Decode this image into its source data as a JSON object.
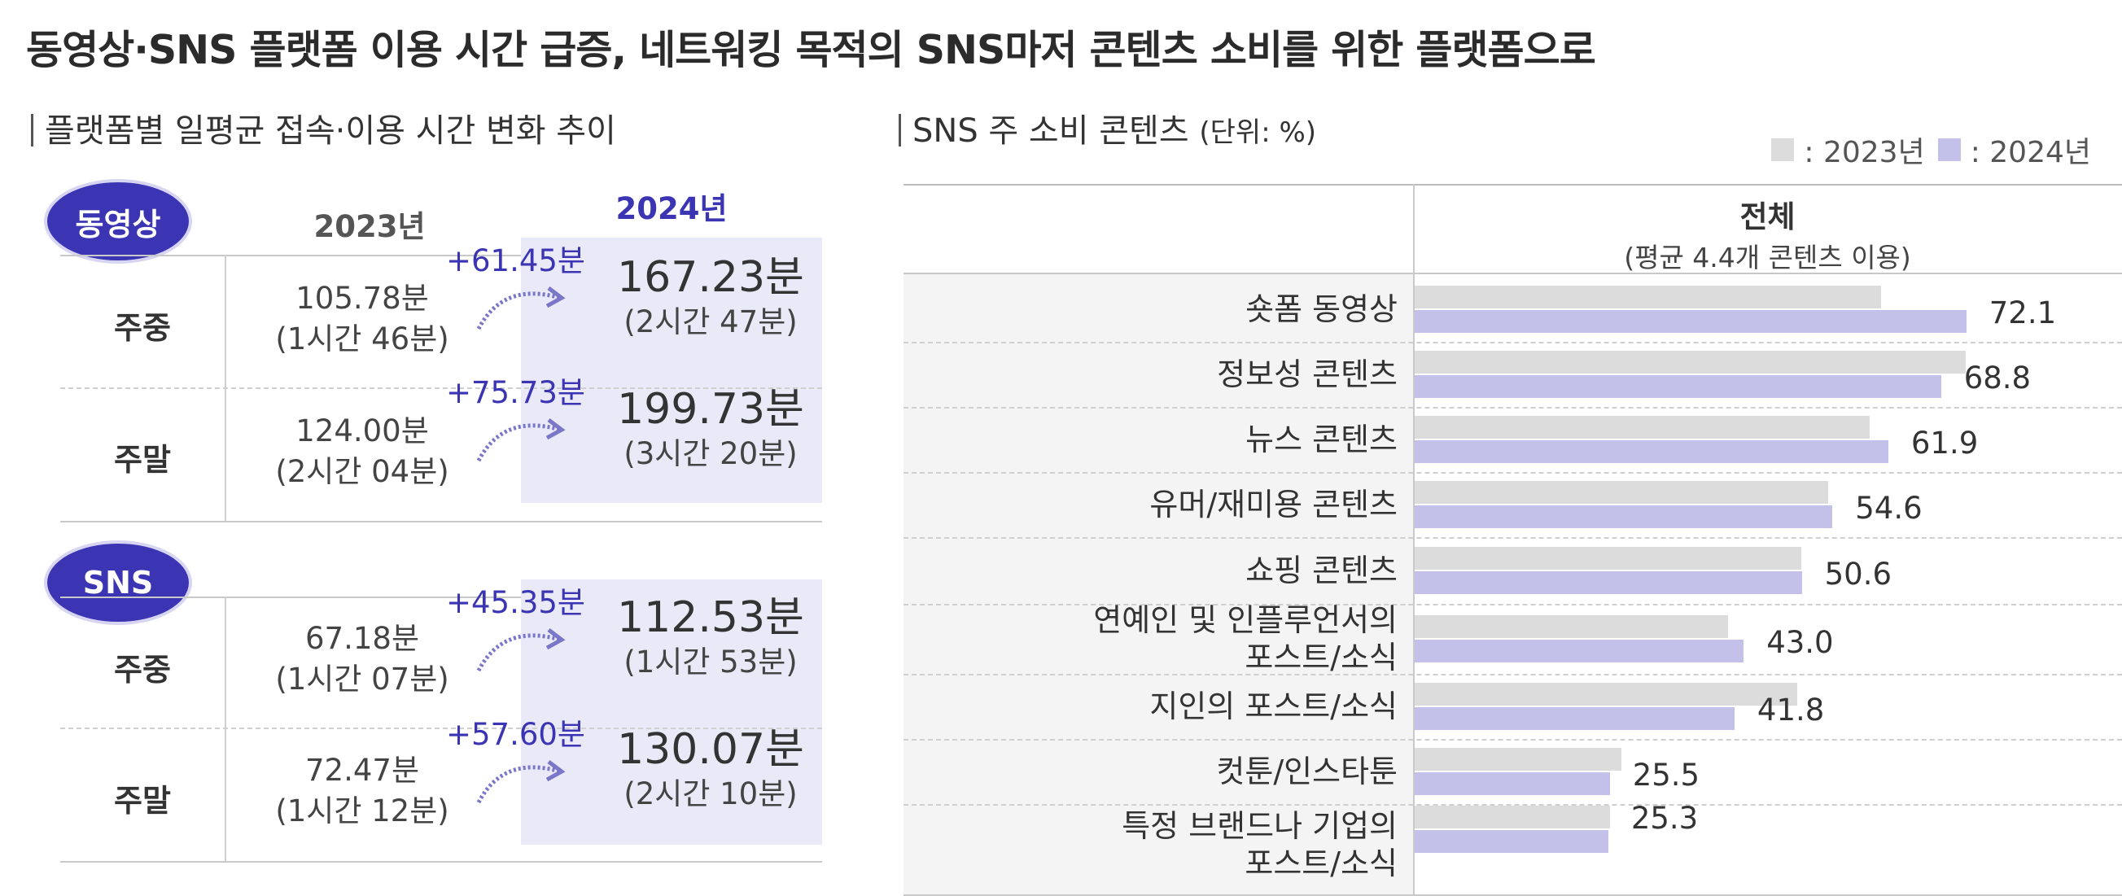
{
  "main_title": "동영상·SNS 플랫폼 이용 시간 급증, 네트워킹 목적의 SNS마저 콘텐츠 소비를 위한 플랫폼으로",
  "left": {
    "title": "플랫폼별 일평균 접속·이용 시간 변화 추이",
    "year_2023": "2023년",
    "year_2024": "2024년",
    "groups": [
      {
        "name": "동영상",
        "rows": [
          {
            "label": "주중",
            "v2023": "105.78분",
            "v2023_sub": "(1시간 46분)",
            "diff": "+61.45분",
            "v2024": "167.23분",
            "v2024_sub": "(2시간 47분)"
          },
          {
            "label": "주말",
            "v2023": "124.00분",
            "v2023_sub": "(2시간 04분)",
            "diff": "+75.73분",
            "v2024": "199.73분",
            "v2024_sub": "(3시간 20분)"
          }
        ]
      },
      {
        "name": "SNS",
        "rows": [
          {
            "label": "주중",
            "v2023": "67.18분",
            "v2023_sub": "(1시간 07분)",
            "diff": "+45.35분",
            "v2024": "112.53분",
            "v2024_sub": "(1시간 53분)"
          },
          {
            "label": "주말",
            "v2023": "72.47분",
            "v2023_sub": "(1시간 12분)",
            "diff": "+57.60분",
            "v2024": "130.07분",
            "v2024_sub": "(2시간 10분)"
          }
        ]
      }
    ]
  },
  "right": {
    "title": "SNS 주 소비 콘텐츠",
    "unit": "(단위: %)",
    "legend_2023": ": 2023년",
    "legend_2024": ": 2024년",
    "header": "전체",
    "subheader": "(평균 4.4개 콘텐츠 이용)"
  },
  "colors": {
    "accent": "#3b35b4",
    "bar_2023": "#dcdcdc",
    "bar_2024": "#c3c1ea",
    "shade": "#e9e9f7"
  },
  "chart_data": {
    "type": "bar",
    "orientation": "horizontal",
    "categories": [
      "숏폼 동영상",
      "정보성 콘텐츠",
      "뉴스 콘텐츠",
      "유머/재미용 콘텐츠",
      "쇼핑 콘텐츠",
      "연예인 및 인플루언서의\n포스트/소식",
      "지인의 포스트/소식",
      "컷툰/인스타툰",
      "특정 브랜드나 기업의\n포스트/소식"
    ],
    "series": [
      {
        "name": "2023년",
        "values": [
          61.0,
          72.0,
          59.5,
          54.0,
          50.5,
          41.0,
          50.0,
          27.0,
          25.5
        ]
      },
      {
        "name": "2024년",
        "values": [
          72.1,
          68.8,
          61.9,
          54.6,
          50.6,
          43.0,
          41.8,
          25.5,
          25.3
        ]
      }
    ],
    "value_labels": [
      "72.1",
      "68.8",
      "61.9",
      "54.6",
      "50.6",
      "43.0",
      "41.8",
      "25.5",
      "25.3"
    ],
    "xlim": [
      0,
      100
    ],
    "legend": "top-right"
  }
}
